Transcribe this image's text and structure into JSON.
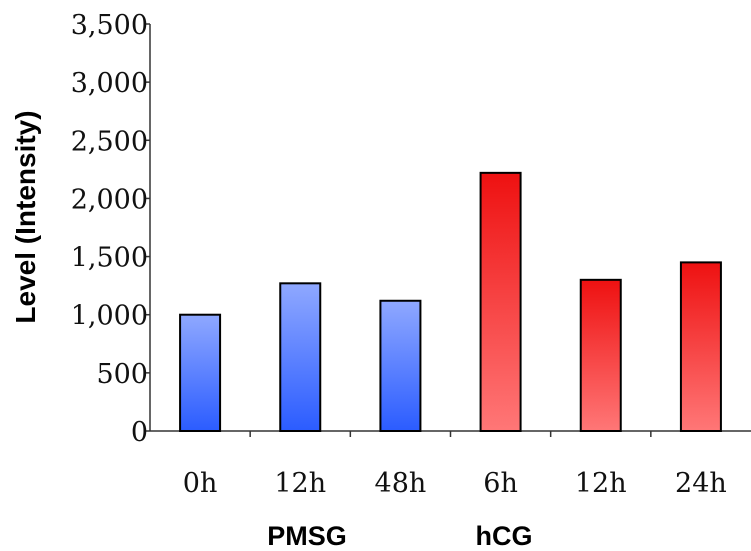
{
  "chart_data": {
    "type": "bar",
    "ylabel": "Level (Intensity)",
    "ylim": [
      0,
      3500
    ],
    "yticks": [
      0,
      500,
      1000,
      1500,
      2000,
      2500,
      3000,
      3500
    ],
    "ytick_labels": [
      "0",
      "500",
      "1,000",
      "1,500",
      "2,000",
      "2,500",
      "3,000",
      "3,500"
    ],
    "categories": [
      "0h",
      "12h",
      "48h",
      "6h",
      "12h",
      "24h"
    ],
    "values": [
      1000,
      1270,
      1120,
      2220,
      1300,
      1450
    ],
    "groups": [
      {
        "label": "PMSG",
        "color_top": "#8fa8ff",
        "color_bottom": "#2b5cff"
      },
      {
        "label": "hCG",
        "color_top": "#ee1111",
        "color_bottom": "#ff7777"
      }
    ],
    "bar_group": [
      0,
      0,
      0,
      1,
      1,
      1
    ],
    "grid": false
  }
}
